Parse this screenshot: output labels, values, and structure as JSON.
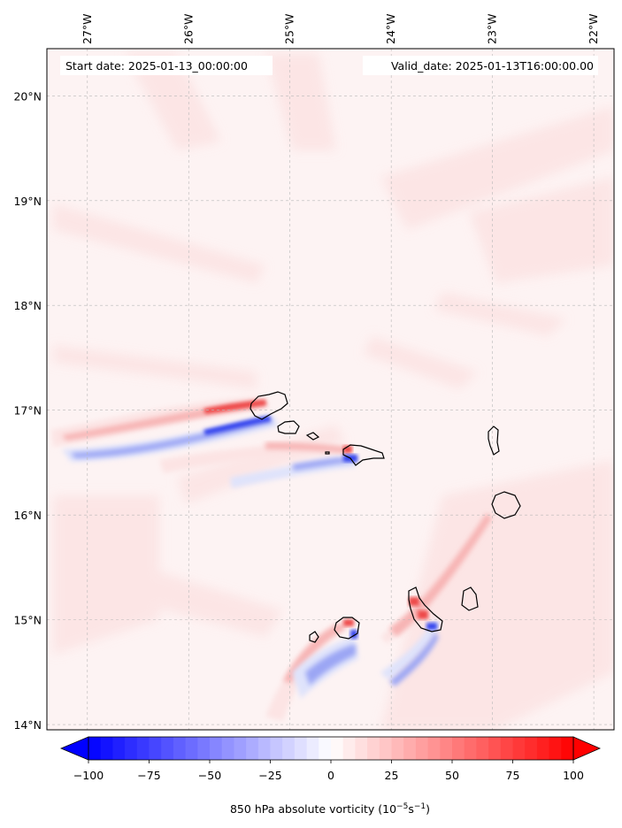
{
  "header": {
    "start_label": "Start date: 2025-01-13_00:00:00",
    "valid_label": "Valid_date: 2025-01-13T16:00:00.00"
  },
  "map": {
    "lon_range": [
      -27.4,
      -21.8
    ],
    "lat_range": [
      13.95,
      20.45
    ],
    "lon_ticks": [
      "27°W",
      "26°W",
      "25°W",
      "24°W",
      "23°W",
      "22°W"
    ],
    "lon_tick_values": [
      -27,
      -26,
      -25,
      -24,
      -23,
      -22
    ],
    "lat_ticks": [
      "20°N",
      "19°N",
      "18°N",
      "17°N",
      "16°N",
      "15°N",
      "14°N"
    ],
    "lat_tick_values": [
      20,
      19,
      18,
      17,
      16,
      15,
      14
    ],
    "gridlines": true,
    "field_colors": {
      "background": "#fdf3f3",
      "light_red": "#fce4e4",
      "mid_red": "#f7b4b4",
      "strong_red": "#ee4a4a",
      "light_blue": "#dfe3fb",
      "mid_blue": "#9ba6f4",
      "strong_blue": "#3645ee",
      "coastline": "#000000"
    }
  },
  "colorbar": {
    "tick_values": [
      -100,
      -75,
      -50,
      -25,
      0,
      25,
      50,
      75,
      100
    ],
    "tick_labels": [
      "−100",
      "−75",
      "−50",
      "−25",
      "0",
      "25",
      "50",
      "75",
      "100"
    ],
    "range": [
      -100,
      100
    ],
    "extend": "both",
    "cmap": "bwr",
    "label": "850 hPa absolute vorticity (10",
    "label_exp": "−5",
    "label_unit": "s",
    "label_exp2": "−1",
    "label_close": ")"
  }
}
